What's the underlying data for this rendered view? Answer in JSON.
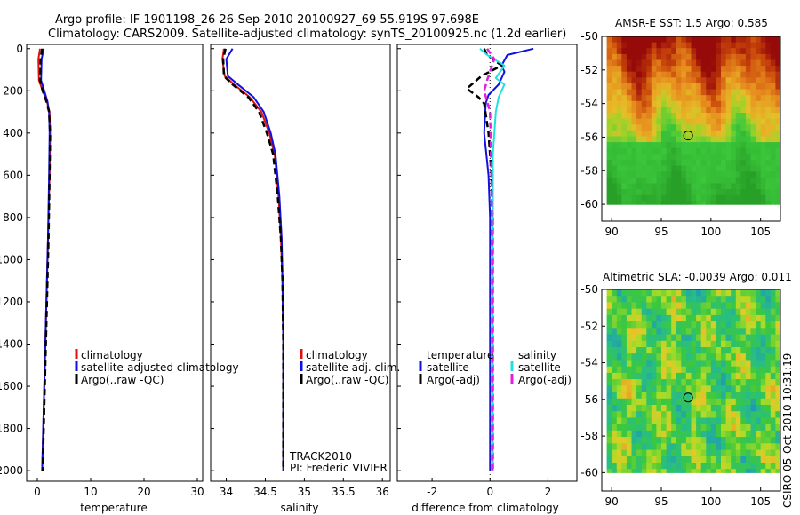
{
  "header": {
    "title_line1": "Argo profile: IF 1901198_26 26-Sep-2010 20100927_69 55.919S 97.698E",
    "title_line2": "Climatology: CARS2009. Satellite-adjusted climatology: synTS_20100925.nc (1.2d earlier)"
  },
  "colors": {
    "climatology": "#e01010",
    "satellite": "#1010e0",
    "argo": "#000000",
    "satellite_salinity": "#20e0e0",
    "argo_salinity": "#e020e0"
  },
  "chart_data": [
    {
      "type": "line",
      "title": "",
      "xlabel": "temperature",
      "ylabel": "",
      "xlim": [
        -2,
        31
      ],
      "ylim": [
        2050,
        -20
      ],
      "xticks": [
        "0",
        "10",
        "20",
        "30"
      ],
      "yticks": [
        "0",
        "200",
        "400",
        "600",
        "800",
        "1000",
        "1200",
        "1400",
        "1600",
        "1800",
        "2000"
      ],
      "series": [
        {
          "name": "climatology",
          "style": "solid",
          "x": [
            0.5,
            0.2,
            0.3,
            1.0,
            1.8,
            2.3,
            2.4,
            2.3,
            2.0,
            1.7,
            1.4,
            1.1,
            0.9
          ],
          "y": [
            0,
            50,
            150,
            200,
            250,
            300,
            400,
            600,
            900,
            1200,
            1500,
            1800,
            2000
          ]
        },
        {
          "name": "satellite-adjusted climatology",
          "style": "solid",
          "x": [
            1.2,
            0.8,
            0.7,
            1.3,
            1.9,
            2.2,
            2.3,
            2.2,
            2.0,
            1.7,
            1.4,
            1.1,
            0.9
          ],
          "y": [
            0,
            50,
            150,
            200,
            250,
            300,
            400,
            600,
            900,
            1200,
            1500,
            1800,
            2000
          ]
        },
        {
          "name": "Argo(..raw -QC)",
          "style": "dashed",
          "x": [
            0.9,
            0.6,
            0.5,
            1.0,
            1.7,
            2.2,
            2.4,
            2.3,
            2.1,
            1.8,
            1.5,
            1.2,
            1.0
          ],
          "y": [
            0,
            50,
            150,
            200,
            250,
            300,
            400,
            600,
            900,
            1200,
            1500,
            1800,
            2000
          ]
        }
      ],
      "legend": [
        "climatology",
        "satellite-adjusted climatology",
        "Argo(..raw -QC)"
      ]
    },
    {
      "type": "line",
      "title": "",
      "xlabel": "salinity",
      "ylabel": "",
      "xlim": [
        33.8,
        36.1
      ],
      "ylim": [
        2050,
        -20
      ],
      "xticks": [
        "34",
        "34.5",
        "35",
        "35.5",
        "36"
      ],
      "series": [
        {
          "name": "climatology",
          "style": "solid",
          "x": [
            33.97,
            33.95,
            33.98,
            34.1,
            34.3,
            34.45,
            34.55,
            34.62,
            34.67,
            34.7,
            34.72,
            34.73,
            34.73,
            34.73
          ],
          "y": [
            0,
            50,
            130,
            170,
            230,
            300,
            400,
            500,
            700,
            900,
            1100,
            1400,
            1700,
            2000
          ]
        },
        {
          "name": "satellite adj. clim.",
          "style": "solid",
          "x": [
            34.08,
            34.0,
            34.02,
            34.15,
            34.35,
            34.48,
            34.57,
            34.63,
            34.68,
            34.71,
            34.72,
            34.73,
            34.73,
            34.73
          ],
          "y": [
            0,
            50,
            130,
            170,
            230,
            300,
            400,
            500,
            700,
            900,
            1100,
            1400,
            1700,
            2000
          ]
        },
        {
          "name": "Argo(..raw -QC)",
          "style": "dashed",
          "x": [
            33.99,
            33.96,
            33.97,
            34.08,
            34.28,
            34.42,
            34.52,
            34.6,
            34.66,
            34.7,
            34.72,
            34.73,
            34.73,
            34.73
          ],
          "y": [
            0,
            50,
            130,
            170,
            230,
            300,
            400,
            500,
            700,
            900,
            1100,
            1400,
            1700,
            2000
          ]
        }
      ],
      "legend": [
        "climatology",
        "satellite adj. clim.",
        "Argo(..raw -QC)"
      ],
      "annotation": [
        "TRACK2010",
        "PI: Frederic VIVIER"
      ]
    },
    {
      "type": "line",
      "title": "",
      "xlabel": "difference from climatology",
      "ylabel": "",
      "xlim": [
        -3.2,
        3.0
      ],
      "ylim": [
        2050,
        -20
      ],
      "xticks": [
        "-2",
        "0",
        "2"
      ],
      "series": [
        {
          "name": "temperature satellite",
          "style": "solid",
          "x": [
            1.5,
            0.6,
            0.4,
            0.5,
            0.3,
            -0.05,
            -0.15,
            -0.2,
            -0.05,
            0.0,
            0.0,
            0.0,
            0.0
          ],
          "y": [
            0,
            30,
            80,
            110,
            170,
            220,
            260,
            400,
            600,
            800,
            1200,
            1600,
            2000
          ]
        },
        {
          "name": "temperature Argo(-adj)",
          "style": "dashed",
          "x": [
            -0.2,
            -0.1,
            0.4,
            -0.3,
            -0.8,
            -0.4,
            -0.2,
            -0.05,
            0.05,
            0.1,
            0.1,
            0.1,
            0.1
          ],
          "y": [
            0,
            30,
            80,
            130,
            190,
            230,
            260,
            400,
            600,
            800,
            1200,
            1600,
            2000
          ]
        },
        {
          "name": "salinity satellite",
          "style": "solid",
          "x": [
            -0.35,
            -0.1,
            0.5,
            0.2,
            0.5,
            0.3,
            0.2,
            0.1,
            0.1,
            0.1,
            0.1,
            0.1
          ],
          "y": [
            0,
            30,
            80,
            140,
            170,
            230,
            300,
            500,
            800,
            1200,
            1600,
            2000
          ]
        },
        {
          "name": "salinity Argo(-adj)",
          "style": "dashed",
          "x": [
            -0.1,
            0.15,
            -0.1,
            -0.2,
            0.0,
            0.05,
            0.08,
            0.08,
            0.08
          ],
          "y": [
            0,
            50,
            150,
            200,
            300,
            600,
            1000,
            1500,
            2000
          ]
        }
      ],
      "legend_groups": [
        {
          "heading": "temperature",
          "items": [
            "satellite",
            "Argo(-adj)"
          ]
        },
        {
          "heading": "salinity",
          "items": [
            "satellite",
            "Argo(-adj)"
          ]
        }
      ]
    },
    {
      "type": "heatmap",
      "title": "AMSR-E SST: 1.5 Argo: 0.585",
      "xlim": [
        89,
        107
      ],
      "ylim": [
        -61,
        -50
      ],
      "xticks": [
        "90",
        "95",
        "100",
        "105"
      ],
      "yticks": [
        "-50",
        "-52",
        "-54",
        "-56",
        "-58",
        "-60"
      ],
      "marker": {
        "lon": 97.7,
        "lat": -55.9
      },
      "data_extent": {
        "lon": [
          89.5,
          107
        ],
        "lat": [
          -60,
          -50
        ]
      }
    },
    {
      "type": "heatmap",
      "title": "Altimetric SLA: -0.0039 Argo: 0.011",
      "xlim": [
        89,
        107
      ],
      "ylim": [
        -61,
        -50
      ],
      "xticks": [
        "90",
        "95",
        "100",
        "105"
      ],
      "yticks": [
        "-50",
        "-52",
        "-54",
        "-56",
        "-58",
        "-60"
      ],
      "marker": {
        "lon": 97.7,
        "lat": -55.9
      },
      "data_extent": {
        "lon": [
          89.5,
          107
        ],
        "lat": [
          -60,
          -50
        ]
      }
    }
  ],
  "credit": "CSIRO 05-Oct-2010 10:31:19"
}
